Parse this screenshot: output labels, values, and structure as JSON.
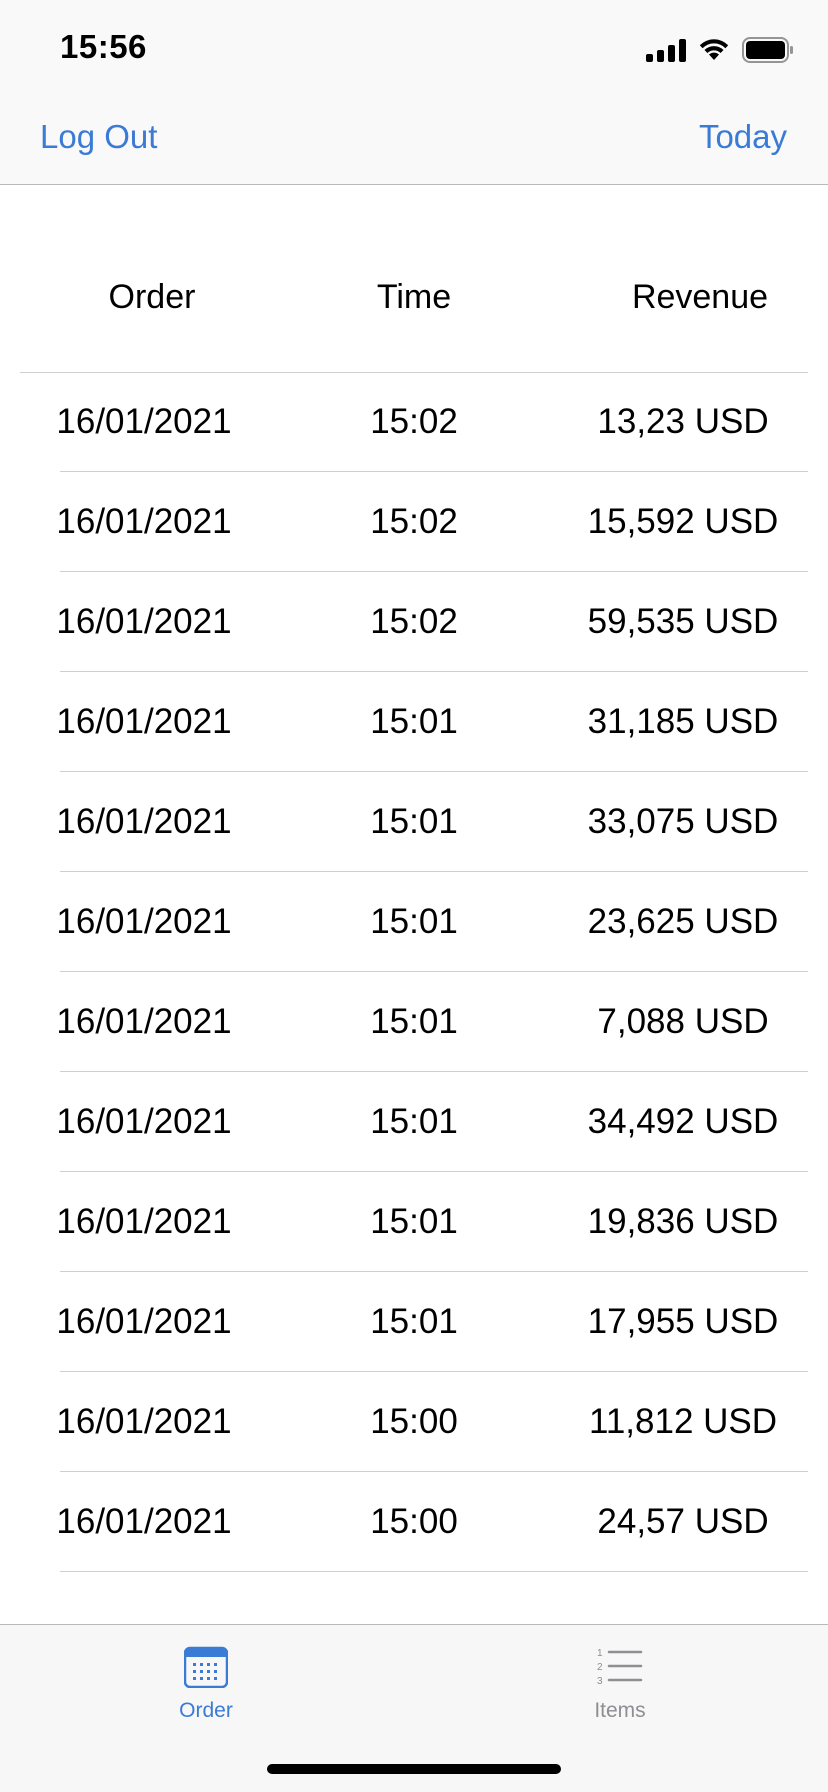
{
  "status_bar": {
    "time": "15:56",
    "icons": [
      "cellular-signal-icon",
      "wifi-icon",
      "battery-icon"
    ]
  },
  "nav": {
    "left_label": "Log Out",
    "right_label": "Today"
  },
  "table": {
    "headers": [
      "Order",
      "Time",
      "Revenue"
    ],
    "rows": [
      {
        "order": "16/01/2021",
        "time": "15:02",
        "revenue": "13,23 USD"
      },
      {
        "order": "16/01/2021",
        "time": "15:02",
        "revenue": "15,592 USD"
      },
      {
        "order": "16/01/2021",
        "time": "15:02",
        "revenue": "59,535 USD"
      },
      {
        "order": "16/01/2021",
        "time": "15:01",
        "revenue": "31,185 USD"
      },
      {
        "order": "16/01/2021",
        "time": "15:01",
        "revenue": "33,075 USD"
      },
      {
        "order": "16/01/2021",
        "time": "15:01",
        "revenue": "23,625 USD"
      },
      {
        "order": "16/01/2021",
        "time": "15:01",
        "revenue": "7,088 USD"
      },
      {
        "order": "16/01/2021",
        "time": "15:01",
        "revenue": "34,492 USD"
      },
      {
        "order": "16/01/2021",
        "time": "15:01",
        "revenue": "19,836 USD"
      },
      {
        "order": "16/01/2021",
        "time": "15:01",
        "revenue": "17,955 USD"
      },
      {
        "order": "16/01/2021",
        "time": "15:00",
        "revenue": "11,812 USD"
      },
      {
        "order": "16/01/2021",
        "time": "15:00",
        "revenue": "24,57 USD"
      }
    ]
  },
  "tab_bar": {
    "tabs": [
      {
        "label": "Order",
        "icon": "calendar-icon",
        "selected": true
      },
      {
        "label": "Items",
        "icon": "numbered-list-icon",
        "selected": false
      }
    ]
  },
  "colors": {
    "accent": "#3a7bd5",
    "inactive_tab": "#8e8e93",
    "separator": "#cfcfd1",
    "bar_background": "#f9f9f9"
  }
}
